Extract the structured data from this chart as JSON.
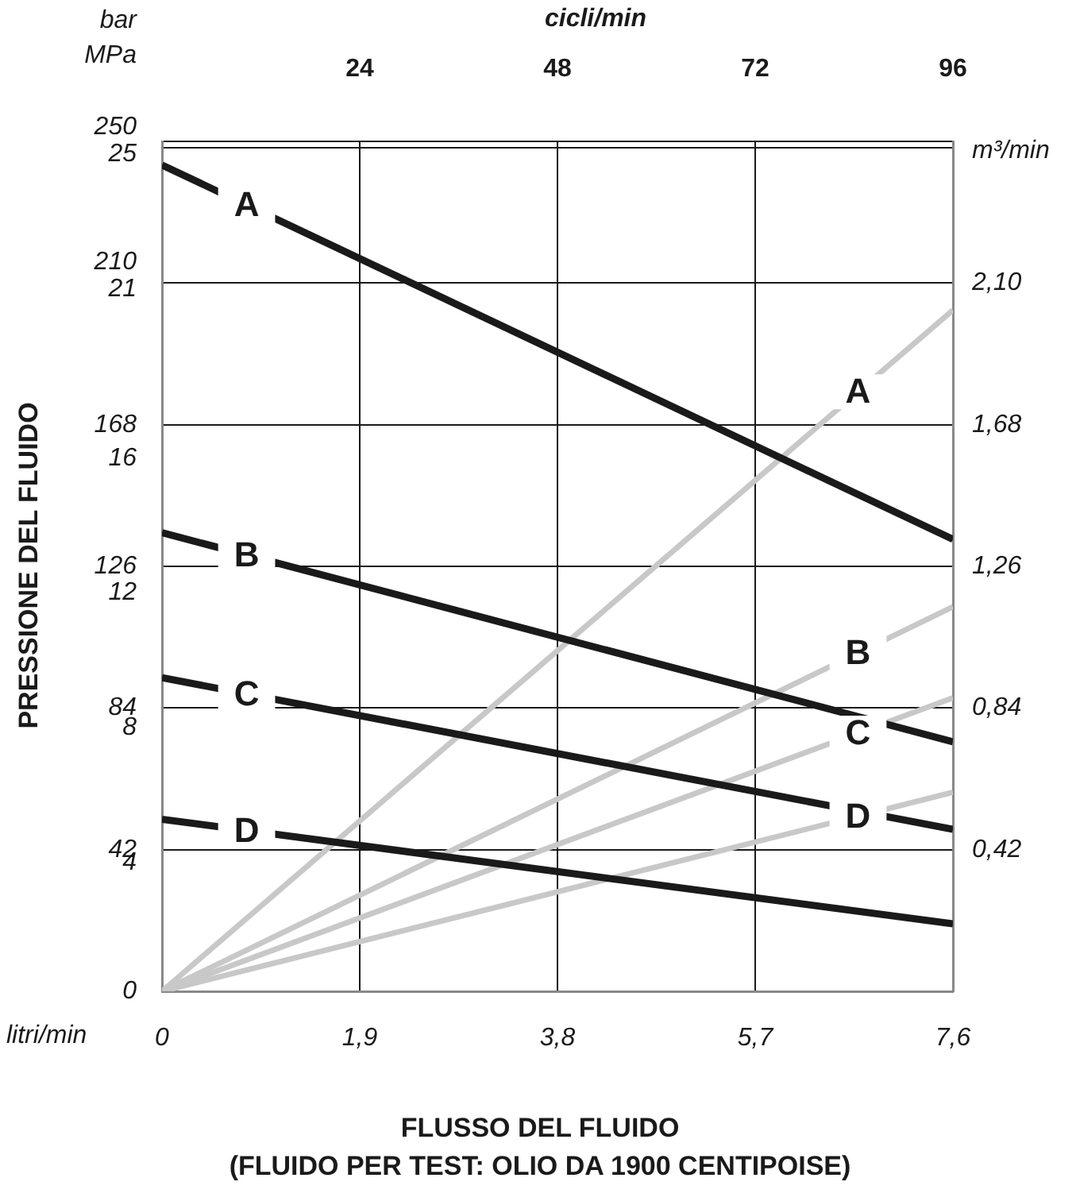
{
  "chart_data": {
    "type": "line",
    "xlabel": "FLUSSO DEL FLUIDO",
    "ylabel": "PRESSIONE DEL FLUIDO",
    "y2label": "m³/min",
    "x2label": "cicli/min",
    "annotations": [
      "bar",
      "MPa",
      "litri/min",
      "(FLUIDO PER TEST: OLIO DA 1900 CENTIPOISE)"
    ],
    "x": [
      0,
      7.6
    ],
    "series": [
      {
        "name": "A",
        "color": "#1a1a1a",
        "values": [
          245,
          134
        ]
      },
      {
        "name": "B",
        "color": "#1a1a1a",
        "values": [
          136,
          74
        ]
      },
      {
        "name": "C",
        "color": "#1a1a1a",
        "values": [
          93,
          48
        ]
      },
      {
        "name": "D",
        "color": "#1a1a1a",
        "values": [
          51,
          20
        ]
      },
      {
        "name": "A",
        "color": "#c8c8c8",
        "axis": "y2",
        "values": [
          0,
          2.02
        ]
      },
      {
        "name": "B",
        "color": "#c8c8c8",
        "axis": "y2",
        "values": [
          0,
          1.14
        ]
      },
      {
        "name": "C",
        "color": "#c8c8c8",
        "axis": "y2",
        "values": [
          0,
          0.87
        ]
      },
      {
        "name": "D",
        "color": "#c8c8c8",
        "axis": "y2",
        "values": [
          0,
          0.59
        ]
      }
    ],
    "xlim": [
      0,
      7.6
    ],
    "xticks": [
      0,
      {
        "value": 1.9,
        "label": "1,9"
      },
      {
        "value": 3.8,
        "label": "3,8"
      },
      {
        "value": 5.7,
        "label": "5,7"
      },
      {
        "value": 7.6,
        "label": "7,6"
      }
    ],
    "x2lim": [
      0,
      96
    ],
    "x2ticks": [
      24,
      48,
      72,
      96
    ],
    "ylim": [
      0,
      252
    ],
    "yticks": [
      0,
      42,
      84,
      126,
      168,
      210,
      250
    ],
    "y3lim": [
      0,
      25.2
    ],
    "y3ticks": [
      4,
      8,
      12,
      16,
      21,
      25
    ],
    "y2lim": [
      0,
      2.52
    ],
    "y2ticks": [
      {
        "value": 0.42,
        "label": "0,42"
      },
      {
        "value": 0.84,
        "label": "0,84"
      },
      {
        "value": 1.26,
        "label": "1,26"
      },
      {
        "value": 1.68,
        "label": "1,68"
      },
      {
        "value": 2.1,
        "label": "2,10"
      }
    ],
    "grid": true,
    "legend": false,
    "marker": "none",
    "line_style": "solid"
  }
}
